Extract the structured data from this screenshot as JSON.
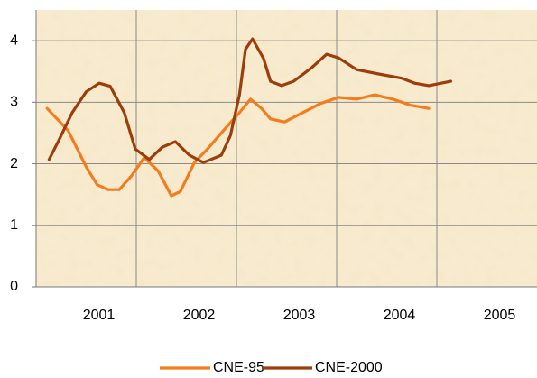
{
  "chart_data": {
    "type": "line",
    "xlim": [
      2000.5,
      2005.5
    ],
    "xticks": [
      2001,
      2002,
      2003,
      2004,
      2005
    ],
    "ylim": [
      0,
      4.5
    ],
    "yticks": [
      0,
      1,
      2,
      3,
      4
    ],
    "grid": true,
    "legend": "bottom",
    "series": [
      {
        "name": "CNE-95",
        "color": "#f47c1c",
        "x": [
          2000.61,
          2000.82,
          2001.0,
          2001.11,
          2001.22,
          2001.33,
          2001.45,
          2001.58,
          2001.72,
          2001.85,
          2001.94,
          2002.08,
          2002.21,
          2002.37,
          2002.53,
          2002.64,
          2002.75,
          2002.84,
          2002.98,
          2003.16,
          2003.34,
          2003.52,
          2003.7,
          2003.88,
          2004.06,
          2004.24,
          2004.42
        ],
        "values": [
          2.9,
          2.54,
          1.95,
          1.66,
          1.58,
          1.58,
          1.8,
          2.1,
          1.88,
          1.48,
          1.55,
          2.02,
          2.24,
          2.54,
          2.83,
          3.05,
          2.9,
          2.73,
          2.68,
          2.83,
          2.98,
          3.08,
          3.05,
          3.12,
          3.05,
          2.95,
          2.9
        ]
      },
      {
        "name": "CNE-2000",
        "color": "#9c3d0c",
        "x": [
          2000.63,
          2000.73,
          2000.86,
          2001.0,
          2001.13,
          2001.24,
          2001.38,
          2001.49,
          2001.63,
          2001.76,
          2001.89,
          2002.03,
          2002.17,
          2002.35,
          2002.44,
          2002.53,
          2002.59,
          2002.66,
          2002.77,
          2002.84,
          2002.95,
          2003.07,
          2003.25,
          2003.4,
          2003.52,
          2003.7,
          2003.92,
          2004.15,
          2004.28,
          2004.42,
          2004.64
        ],
        "values": [
          2.07,
          2.39,
          2.83,
          3.17,
          3.31,
          3.26,
          2.83,
          2.24,
          2.07,
          2.27,
          2.36,
          2.14,
          2.02,
          2.14,
          2.46,
          3.12,
          3.86,
          4.03,
          3.71,
          3.34,
          3.27,
          3.34,
          3.56,
          3.78,
          3.72,
          3.53,
          3.46,
          3.39,
          3.31,
          3.27,
          3.34
        ]
      }
    ]
  }
}
